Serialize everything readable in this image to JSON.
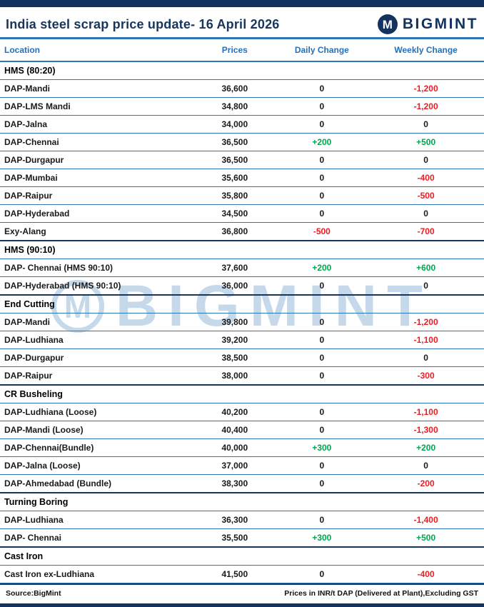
{
  "header": {
    "title": "India steel scrap price update- 16 April 2026",
    "brand": "BIGMINT",
    "logo_letter": "M"
  },
  "columns": [
    "Location",
    "Prices",
    "Daily Change",
    "Weekly Change"
  ],
  "sections": [
    {
      "name": "HMS (80:20)",
      "rows": [
        {
          "location": "DAP-Mandi",
          "price": "36,600",
          "daily": "0",
          "weekly": "-1,200"
        },
        {
          "location": "DAP-LMS Mandi",
          "price": "34,800",
          "daily": "0",
          "weekly": "-1,200"
        },
        {
          "location": "DAP-Jalna",
          "price": "34,000",
          "daily": "0",
          "weekly": "0"
        },
        {
          "location": "DAP-Chennai",
          "price": "36,500",
          "daily": "+200",
          "weekly": "+500"
        },
        {
          "location": "DAP-Durgapur",
          "price": "36,500",
          "daily": "0",
          "weekly": "0"
        },
        {
          "location": "DAP-Mumbai",
          "price": "35,600",
          "daily": "0",
          "weekly": "-400"
        },
        {
          "location": "DAP-Raipur",
          "price": "35,800",
          "daily": "0",
          "weekly": "-500"
        },
        {
          "location": "DAP-Hyderabad",
          "price": "34,500",
          "daily": "0",
          "weekly": "0"
        },
        {
          "location": "Exy-Alang",
          "price": "36,800",
          "daily": "-500",
          "weekly": "-700"
        }
      ]
    },
    {
      "name": "HMS (90:10)",
      "rows": [
        {
          "location": "DAP- Chennai  (HMS 90:10)",
          "price": "37,600",
          "daily": "+200",
          "weekly": "+600"
        },
        {
          "location": "DAP-Hyderabad (HMS 90:10)",
          "price": "36,000",
          "daily": "0",
          "weekly": "0"
        }
      ]
    },
    {
      "name": "End Cutting",
      "rows": [
        {
          "location": "DAP-Mandi",
          "price": "39,800",
          "daily": "0",
          "weekly": "-1,200"
        },
        {
          "location": "DAP-Ludhiana",
          "price": "39,200",
          "daily": "0",
          "weekly": "-1,100"
        },
        {
          "location": "DAP-Durgapur",
          "price": "38,500",
          "daily": "0",
          "weekly": "0"
        },
        {
          "location": "DAP-Raipur",
          "price": "38,000",
          "daily": "0",
          "weekly": "-300"
        }
      ]
    },
    {
      "name": "CR Busheling",
      "rows": [
        {
          "location": "DAP-Ludhiana (Loose)",
          "price": "40,200",
          "daily": "0",
          "weekly": "-1,100"
        },
        {
          "location": "DAP-Mandi (Loose)",
          "price": "40,400",
          "daily": "0",
          "weekly": "-1,300"
        },
        {
          "location": "DAP-Chennai(Bundle)",
          "price": "40,000",
          "daily": "+300",
          "weekly": "+200"
        },
        {
          "location": "DAP-Jalna (Loose)",
          "price": "37,000",
          "daily": "0",
          "weekly": "0"
        },
        {
          "location": "DAP-Ahmedabad (Bundle)",
          "price": "38,300",
          "daily": "0",
          "weekly": "-200"
        }
      ]
    },
    {
      "name": "Turning Boring",
      "rows": [
        {
          "location": "DAP-Ludhiana",
          "price": "36,300",
          "daily": "0",
          "weekly": "-1,400"
        },
        {
          "location": "DAP- Chennai",
          "price": "35,500",
          "daily": "+300",
          "weekly": "+500"
        }
      ]
    },
    {
      "name": "Cast Iron",
      "rows": [
        {
          "location": "Cast Iron ex-Ludhiana",
          "price": "41,500",
          "daily": "0",
          "weekly": "-400"
        }
      ]
    }
  ],
  "footer": {
    "source": "Source:BigMint",
    "note": "Prices in INR/t DAP (Delivered at Plant),Excluding GST"
  },
  "watermark": {
    "text": "BIGMINT",
    "logo_letter": "M"
  },
  "colors": {
    "navy": "#13325f",
    "line_blue": "#2e75b6",
    "header_blue": "#2470b8",
    "title_navy": "#17365d",
    "positive": "#00a651",
    "negative": "#ed1c24"
  }
}
